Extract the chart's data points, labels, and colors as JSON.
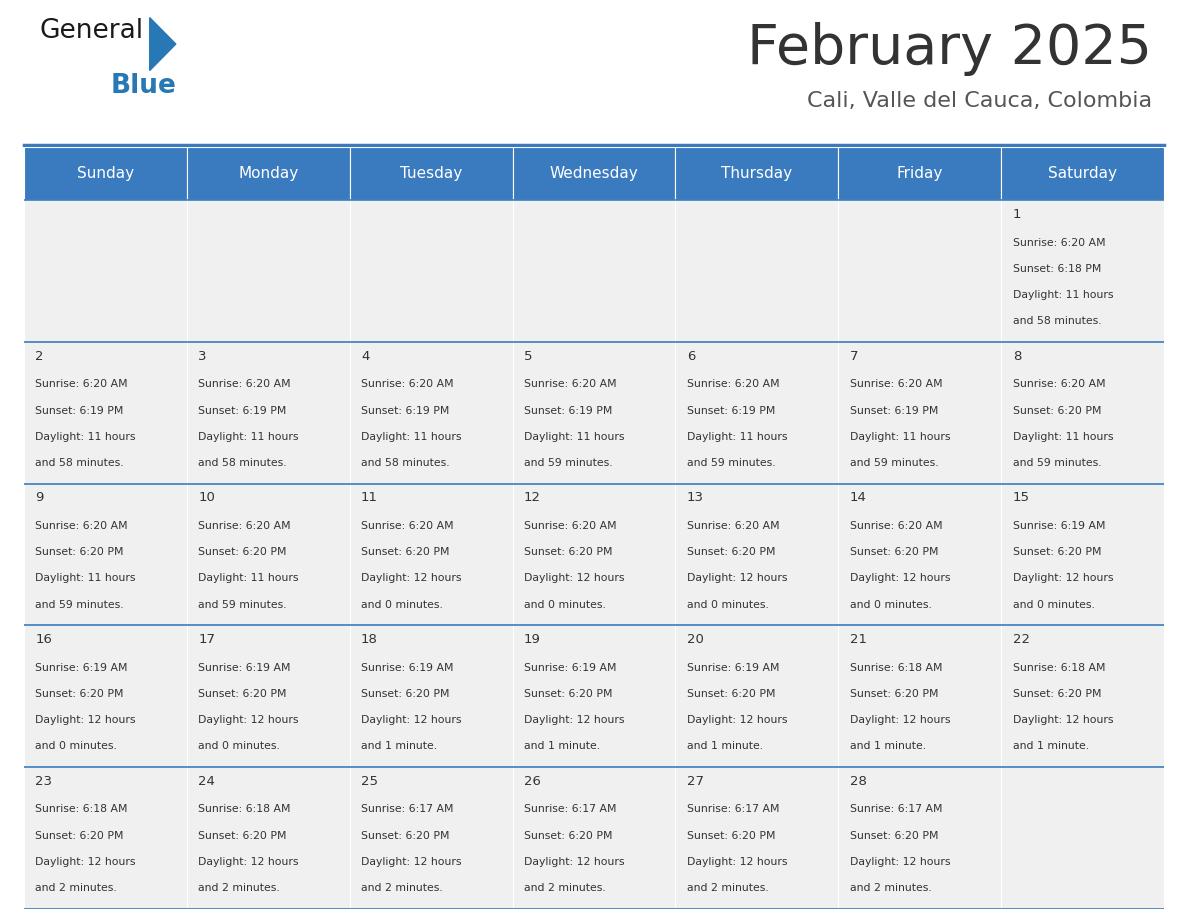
{
  "title": "February 2025",
  "subtitle": "Cali, Valle del Cauca, Colombia",
  "header_bg": "#3a7bbf",
  "header_text_color": "#ffffff",
  "cell_bg_light": "#f0f0f0",
  "border_color": "#3a7bbf",
  "day_names": [
    "Sunday",
    "Monday",
    "Tuesday",
    "Wednesday",
    "Thursday",
    "Friday",
    "Saturday"
  ],
  "title_color": "#333333",
  "subtitle_color": "#555555",
  "text_size": 7.8,
  "num_size": 9.5,
  "days": [
    {
      "day": 1,
      "col": 6,
      "row": 0,
      "sunrise": "6:20 AM",
      "sunset": "6:18 PM",
      "daylight_h": "11 hours",
      "daylight_m": "and 58 minutes."
    },
    {
      "day": 2,
      "col": 0,
      "row": 1,
      "sunrise": "6:20 AM",
      "sunset": "6:19 PM",
      "daylight_h": "11 hours",
      "daylight_m": "and 58 minutes."
    },
    {
      "day": 3,
      "col": 1,
      "row": 1,
      "sunrise": "6:20 AM",
      "sunset": "6:19 PM",
      "daylight_h": "11 hours",
      "daylight_m": "and 58 minutes."
    },
    {
      "day": 4,
      "col": 2,
      "row": 1,
      "sunrise": "6:20 AM",
      "sunset": "6:19 PM",
      "daylight_h": "11 hours",
      "daylight_m": "and 58 minutes."
    },
    {
      "day": 5,
      "col": 3,
      "row": 1,
      "sunrise": "6:20 AM",
      "sunset": "6:19 PM",
      "daylight_h": "11 hours",
      "daylight_m": "and 59 minutes."
    },
    {
      "day": 6,
      "col": 4,
      "row": 1,
      "sunrise": "6:20 AM",
      "sunset": "6:19 PM",
      "daylight_h": "11 hours",
      "daylight_m": "and 59 minutes."
    },
    {
      "day": 7,
      "col": 5,
      "row": 1,
      "sunrise": "6:20 AM",
      "sunset": "6:19 PM",
      "daylight_h": "11 hours",
      "daylight_m": "and 59 minutes."
    },
    {
      "day": 8,
      "col": 6,
      "row": 1,
      "sunrise": "6:20 AM",
      "sunset": "6:20 PM",
      "daylight_h": "11 hours",
      "daylight_m": "and 59 minutes."
    },
    {
      "day": 9,
      "col": 0,
      "row": 2,
      "sunrise": "6:20 AM",
      "sunset": "6:20 PM",
      "daylight_h": "11 hours",
      "daylight_m": "and 59 minutes."
    },
    {
      "day": 10,
      "col": 1,
      "row": 2,
      "sunrise": "6:20 AM",
      "sunset": "6:20 PM",
      "daylight_h": "11 hours",
      "daylight_m": "and 59 minutes."
    },
    {
      "day": 11,
      "col": 2,
      "row": 2,
      "sunrise": "6:20 AM",
      "sunset": "6:20 PM",
      "daylight_h": "12 hours",
      "daylight_m": "and 0 minutes."
    },
    {
      "day": 12,
      "col": 3,
      "row": 2,
      "sunrise": "6:20 AM",
      "sunset": "6:20 PM",
      "daylight_h": "12 hours",
      "daylight_m": "and 0 minutes."
    },
    {
      "day": 13,
      "col": 4,
      "row": 2,
      "sunrise": "6:20 AM",
      "sunset": "6:20 PM",
      "daylight_h": "12 hours",
      "daylight_m": "and 0 minutes."
    },
    {
      "day": 14,
      "col": 5,
      "row": 2,
      "sunrise": "6:20 AM",
      "sunset": "6:20 PM",
      "daylight_h": "12 hours",
      "daylight_m": "and 0 minutes."
    },
    {
      "day": 15,
      "col": 6,
      "row": 2,
      "sunrise": "6:19 AM",
      "sunset": "6:20 PM",
      "daylight_h": "12 hours",
      "daylight_m": "and 0 minutes."
    },
    {
      "day": 16,
      "col": 0,
      "row": 3,
      "sunrise": "6:19 AM",
      "sunset": "6:20 PM",
      "daylight_h": "12 hours",
      "daylight_m": "and 0 minutes."
    },
    {
      "day": 17,
      "col": 1,
      "row": 3,
      "sunrise": "6:19 AM",
      "sunset": "6:20 PM",
      "daylight_h": "12 hours",
      "daylight_m": "and 0 minutes."
    },
    {
      "day": 18,
      "col": 2,
      "row": 3,
      "sunrise": "6:19 AM",
      "sunset": "6:20 PM",
      "daylight_h": "12 hours",
      "daylight_m": "and 1 minute."
    },
    {
      "day": 19,
      "col": 3,
      "row": 3,
      "sunrise": "6:19 AM",
      "sunset": "6:20 PM",
      "daylight_h": "12 hours",
      "daylight_m": "and 1 minute."
    },
    {
      "day": 20,
      "col": 4,
      "row": 3,
      "sunrise": "6:19 AM",
      "sunset": "6:20 PM",
      "daylight_h": "12 hours",
      "daylight_m": "and 1 minute."
    },
    {
      "day": 21,
      "col": 5,
      "row": 3,
      "sunrise": "6:18 AM",
      "sunset": "6:20 PM",
      "daylight_h": "12 hours",
      "daylight_m": "and 1 minute."
    },
    {
      "day": 22,
      "col": 6,
      "row": 3,
      "sunrise": "6:18 AM",
      "sunset": "6:20 PM",
      "daylight_h": "12 hours",
      "daylight_m": "and 1 minute."
    },
    {
      "day": 23,
      "col": 0,
      "row": 4,
      "sunrise": "6:18 AM",
      "sunset": "6:20 PM",
      "daylight_h": "12 hours",
      "daylight_m": "and 2 minutes."
    },
    {
      "day": 24,
      "col": 1,
      "row": 4,
      "sunrise": "6:18 AM",
      "sunset": "6:20 PM",
      "daylight_h": "12 hours",
      "daylight_m": "and 2 minutes."
    },
    {
      "day": 25,
      "col": 2,
      "row": 4,
      "sunrise": "6:17 AM",
      "sunset": "6:20 PM",
      "daylight_h": "12 hours",
      "daylight_m": "and 2 minutes."
    },
    {
      "day": 26,
      "col": 3,
      "row": 4,
      "sunrise": "6:17 AM",
      "sunset": "6:20 PM",
      "daylight_h": "12 hours",
      "daylight_m": "and 2 minutes."
    },
    {
      "day": 27,
      "col": 4,
      "row": 4,
      "sunrise": "6:17 AM",
      "sunset": "6:20 PM",
      "daylight_h": "12 hours",
      "daylight_m": "and 2 minutes."
    },
    {
      "day": 28,
      "col": 5,
      "row": 4,
      "sunrise": "6:17 AM",
      "sunset": "6:20 PM",
      "daylight_h": "12 hours",
      "daylight_m": "and 2 minutes."
    }
  ]
}
